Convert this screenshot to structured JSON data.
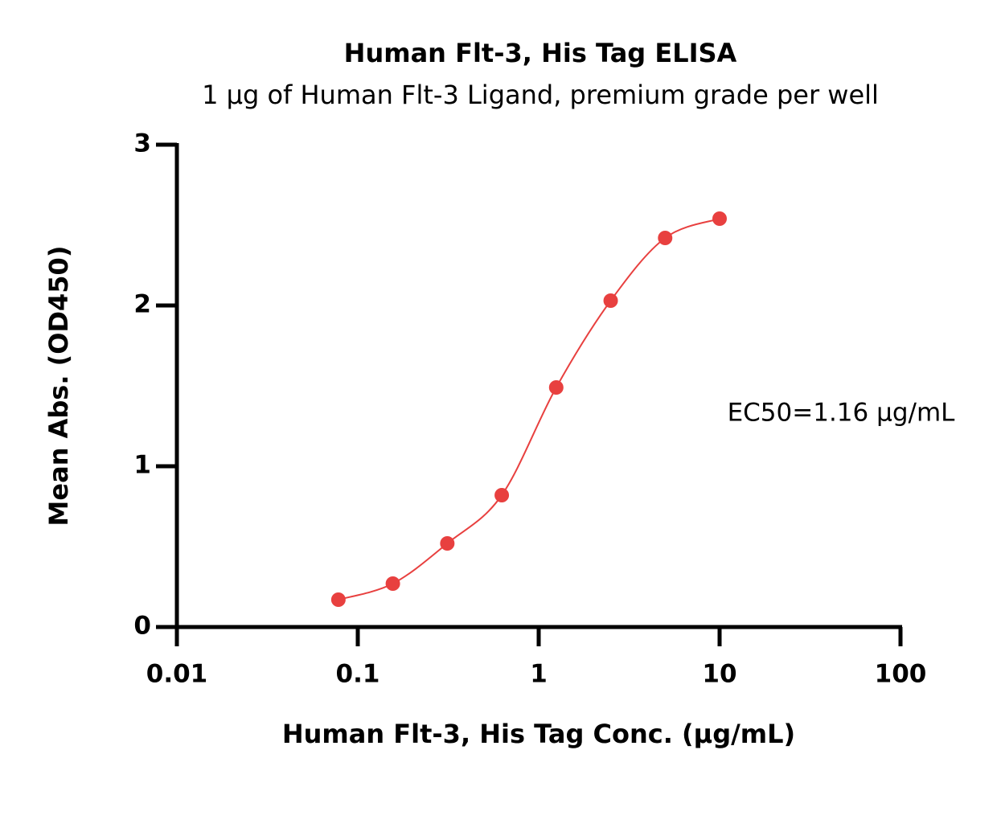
{
  "chart_data": {
    "type": "scatter",
    "title": "Human Flt-3, His Tag ELISA",
    "subtitle": "1 μg of Human Flt-3 Ligand, premium grade per well",
    "xlabel": "Human Flt-3, His Tag Conc. (μg/mL)",
    "ylabel": "Mean Abs. (OD450)",
    "annotation": "EC50=1.16 μg/mL",
    "x": [
      0.078125,
      0.15625,
      0.3125,
      0.625,
      1.25,
      2.5,
      5,
      10
    ],
    "values": [
      0.17,
      0.27,
      0.52,
      0.82,
      1.49,
      2.03,
      2.42,
      2.54
    ],
    "color": "#e8403f",
    "xscale": "log",
    "xlim": [
      0.01,
      100
    ],
    "xticks": [
      0.01,
      0.1,
      1,
      10,
      100
    ],
    "ylim": [
      0,
      3
    ],
    "yticks": [
      0,
      1,
      2,
      3
    ]
  }
}
